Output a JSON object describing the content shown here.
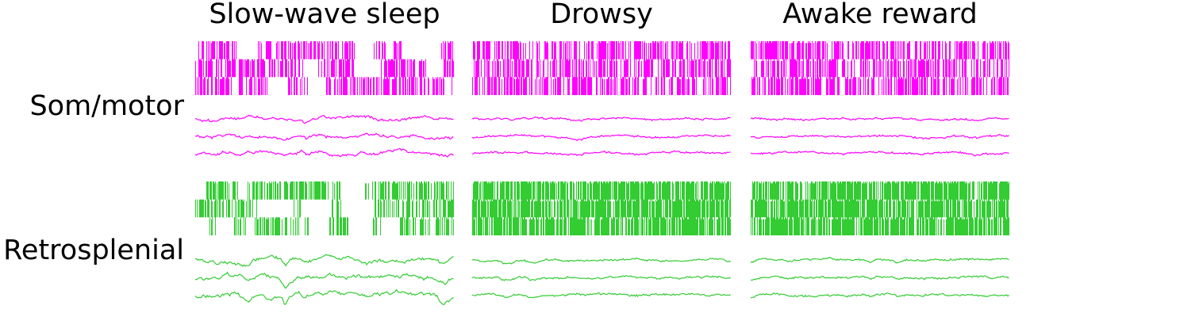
{
  "figure": {
    "columns": [
      "Slow-wave sleep",
      "Drowsy",
      "Awake reward"
    ],
    "rows": [
      "Som/motor",
      "Retrosplenial"
    ],
    "colors": {
      "Som/motor": "#ff00ff",
      "Retrosplenial": "#33cc33"
    },
    "panel_types": [
      "spike raster",
      "LFP traces"
    ],
    "lfp_traces_per_panel": 3,
    "raster_rows_per_panel": 3
  }
}
